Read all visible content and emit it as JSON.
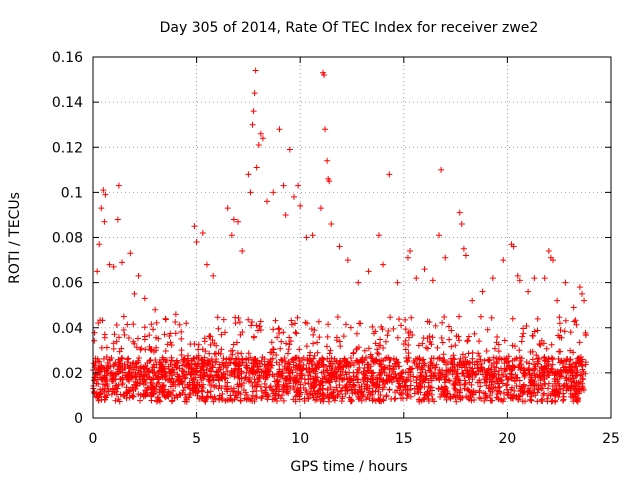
{
  "chart_data": {
    "type": "scatter",
    "title": "Day 305 of 2014, Rate Of TEC Index for receiver zwe2",
    "xlabel": "GPS time / hours",
    "ylabel": "ROTI / TECUs",
    "xlim": [
      0,
      25
    ],
    "ylim": [
      0,
      0.16
    ],
    "x_ticks": [
      "0",
      "5",
      "10",
      "15",
      "20",
      "25"
    ],
    "y_ticks": [
      "0",
      "0.02",
      "0.04",
      "0.06",
      "0.08",
      "0.1",
      "0.12",
      "0.14",
      "0.16"
    ],
    "grid": true,
    "legend": "none",
    "marker": "plus",
    "color": "#ff0000",
    "series": [
      {
        "name": "ROTI",
        "points": [
          [
            0.2,
            0.065
          ],
          [
            0.3,
            0.077
          ],
          [
            0.4,
            0.093
          ],
          [
            0.5,
            0.101
          ],
          [
            0.55,
            0.087
          ],
          [
            0.6,
            0.099
          ],
          [
            0.8,
            0.068
          ],
          [
            1.0,
            0.067
          ],
          [
            1.2,
            0.088
          ],
          [
            1.25,
            0.103
          ],
          [
            1.4,
            0.069
          ],
          [
            1.8,
            0.073
          ],
          [
            2.0,
            0.055
          ],
          [
            2.2,
            0.063
          ],
          [
            2.5,
            0.053
          ],
          [
            3.0,
            0.048
          ],
          [
            3.5,
            0.044
          ],
          [
            4.0,
            0.046
          ],
          [
            4.5,
            0.042
          ],
          [
            4.9,
            0.085
          ],
          [
            5.0,
            0.078
          ],
          [
            5.3,
            0.082
          ],
          [
            5.5,
            0.068
          ],
          [
            5.8,
            0.063
          ],
          [
            6.5,
            0.093
          ],
          [
            6.7,
            0.081
          ],
          [
            6.8,
            0.088
          ],
          [
            7.0,
            0.087
          ],
          [
            7.2,
            0.074
          ],
          [
            7.5,
            0.108
          ],
          [
            7.6,
            0.1
          ],
          [
            7.7,
            0.13
          ],
          [
            7.75,
            0.136
          ],
          [
            7.8,
            0.144
          ],
          [
            7.85,
            0.154
          ],
          [
            7.9,
            0.111
          ],
          [
            8.0,
            0.121
          ],
          [
            8.1,
            0.126
          ],
          [
            8.2,
            0.124
          ],
          [
            8.4,
            0.096
          ],
          [
            8.7,
            0.1
          ],
          [
            9.0,
            0.128
          ],
          [
            9.2,
            0.103
          ],
          [
            9.3,
            0.09
          ],
          [
            9.5,
            0.119
          ],
          [
            9.7,
            0.098
          ],
          [
            9.9,
            0.103
          ],
          [
            10.0,
            0.094
          ],
          [
            10.3,
            0.08
          ],
          [
            10.6,
            0.081
          ],
          [
            11.0,
            0.093
          ],
          [
            11.1,
            0.153
          ],
          [
            11.15,
            0.152
          ],
          [
            11.2,
            0.128
          ],
          [
            11.3,
            0.114
          ],
          [
            11.35,
            0.106
          ],
          [
            11.4,
            0.105
          ],
          [
            11.5,
            0.086
          ],
          [
            11.9,
            0.076
          ],
          [
            12.3,
            0.07
          ],
          [
            12.8,
            0.06
          ],
          [
            13.3,
            0.065
          ],
          [
            13.8,
            0.081
          ],
          [
            14.0,
            0.068
          ],
          [
            14.3,
            0.108
          ],
          [
            14.7,
            0.06
          ],
          [
            15.2,
            0.071
          ],
          [
            15.3,
            0.074
          ],
          [
            15.6,
            0.062
          ],
          [
            16.0,
            0.066
          ],
          [
            16.4,
            0.061
          ],
          [
            16.7,
            0.081
          ],
          [
            16.8,
            0.11
          ],
          [
            17.0,
            0.071
          ],
          [
            17.7,
            0.091
          ],
          [
            17.8,
            0.086
          ],
          [
            17.9,
            0.075
          ],
          [
            18.0,
            0.072
          ],
          [
            18.3,
            0.052
          ],
          [
            18.8,
            0.056
          ],
          [
            19.3,
            0.062
          ],
          [
            19.8,
            0.07
          ],
          [
            20.2,
            0.077
          ],
          [
            20.3,
            0.076
          ],
          [
            20.5,
            0.063
          ],
          [
            20.6,
            0.061
          ],
          [
            21.0,
            0.056
          ],
          [
            21.3,
            0.062
          ],
          [
            21.8,
            0.062
          ],
          [
            22.0,
            0.074
          ],
          [
            22.1,
            0.071
          ],
          [
            22.2,
            0.07
          ],
          [
            22.4,
            0.052
          ],
          [
            22.8,
            0.06
          ],
          [
            23.2,
            0.049
          ],
          [
            23.5,
            0.058
          ],
          [
            23.6,
            0.055
          ],
          [
            23.7,
            0.052
          ]
        ],
        "noise_band": {
          "x_range": [
            0,
            23.8
          ],
          "typical_range": [
            0.003,
            0.045
          ],
          "median": 0.017
        }
      }
    ]
  }
}
